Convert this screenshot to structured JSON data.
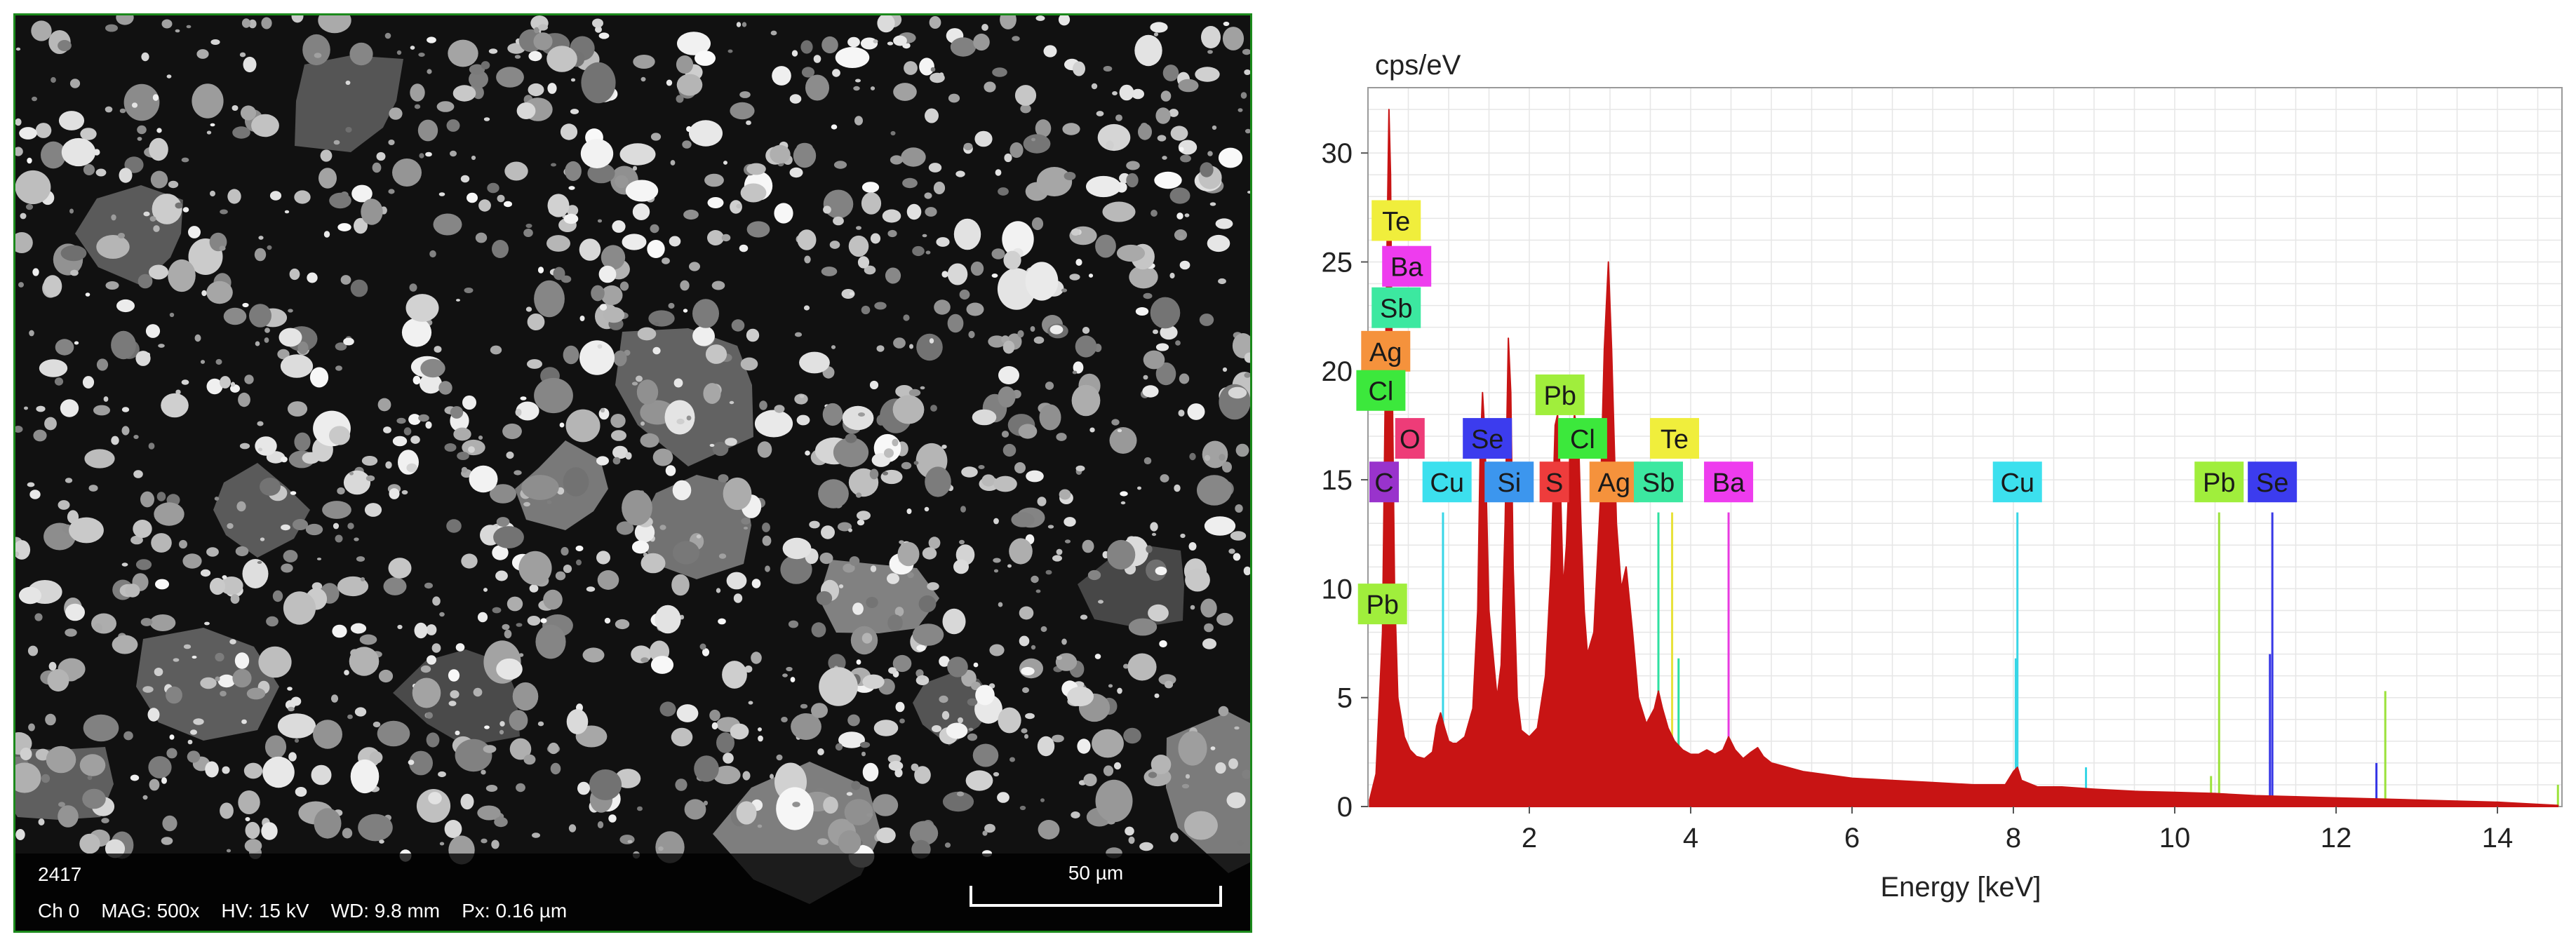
{
  "sem_image": {
    "image_id": "2417",
    "params": "Ch 0    MAG: 500x    HV: 15 kV    WD: 9.8 mm    Px: 0.16 µm",
    "scale_label": "50 µm"
  },
  "chart_data": {
    "type": "line",
    "title": "",
    "ylabel": "cps/eV",
    "xlabel": "Energy [keV]",
    "xlim": [
      0,
      14.8
    ],
    "ylim": [
      0,
      33
    ],
    "xticks": [
      2,
      4,
      6,
      8,
      10,
      12,
      14
    ],
    "yticks": [
      0,
      5,
      10,
      15,
      20,
      25,
      30
    ],
    "grid": true,
    "spectrum": {
      "color": "#c81414",
      "x": [
        0.02,
        0.1,
        0.18,
        0.23,
        0.26,
        0.28,
        0.3,
        0.33,
        0.37,
        0.45,
        0.52,
        0.6,
        0.7,
        0.8,
        0.85,
        0.9,
        0.95,
        1.0,
        1.05,
        1.1,
        1.2,
        1.3,
        1.36,
        1.39,
        1.42,
        1.45,
        1.5,
        1.6,
        1.65,
        1.7,
        1.74,
        1.77,
        1.8,
        1.85,
        1.9,
        2.0,
        2.1,
        2.2,
        2.27,
        2.32,
        2.35,
        2.38,
        2.42,
        2.46,
        2.5,
        2.56,
        2.61,
        2.64,
        2.68,
        2.72,
        2.8,
        2.88,
        2.93,
        2.98,
        3.02,
        3.08,
        3.14,
        3.2,
        3.28,
        3.35,
        3.45,
        3.55,
        3.6,
        3.65,
        3.72,
        3.8,
        3.9,
        4.0,
        4.1,
        4.2,
        4.3,
        4.4,
        4.47,
        4.55,
        4.65,
        4.75,
        4.83,
        4.9,
        5.0,
        5.1,
        5.2,
        5.4,
        5.6,
        5.8,
        6.0,
        6.5,
        7.0,
        7.5,
        7.9,
        8.0,
        8.05,
        8.1,
        8.3,
        8.6,
        9.0,
        9.5,
        10.0,
        10.5,
        11.0,
        11.5,
        12.0,
        12.5,
        13.0,
        13.5,
        14.0,
        14.5,
        14.75
      ],
      "y": [
        0.3,
        1.5,
        8.0,
        24.0,
        32.0,
        29.0,
        20.0,
        10.0,
        5.0,
        3.2,
        2.6,
        2.3,
        2.2,
        2.5,
        3.7,
        4.3,
        3.6,
        3.0,
        2.9,
        2.9,
        3.2,
        4.5,
        9.0,
        16.0,
        19.0,
        17.0,
        9.0,
        5.0,
        6.5,
        13.0,
        21.5,
        19.0,
        11.0,
        5.0,
        3.5,
        3.2,
        3.6,
        6.0,
        11.0,
        17.5,
        18.0,
        15.5,
        10.0,
        12.0,
        16.0,
        18.0,
        17.0,
        13.0,
        9.0,
        7.0,
        8.0,
        14.0,
        21.0,
        25.0,
        21.0,
        13.0,
        10.0,
        11.0,
        8.0,
        5.0,
        3.8,
        4.5,
        5.3,
        4.5,
        3.6,
        3.0,
        2.6,
        2.4,
        2.4,
        2.6,
        2.4,
        2.6,
        3.2,
        2.6,
        2.2,
        2.5,
        2.7,
        2.3,
        2.0,
        1.9,
        1.8,
        1.6,
        1.5,
        1.4,
        1.3,
        1.2,
        1.1,
        1.0,
        1.0,
        1.6,
        1.8,
        1.2,
        0.9,
        0.9,
        0.8,
        0.7,
        0.65,
        0.6,
        0.5,
        0.45,
        0.4,
        0.35,
        0.3,
        0.25,
        0.2,
        0.1,
        0.05
      ]
    },
    "element_lines": [
      {
        "x": 0.28,
        "y": 1.3,
        "color": "#9933cc"
      },
      {
        "x": 0.52,
        "y": 1.6,
        "color": "#e83a6a"
      },
      {
        "x": 0.93,
        "y": 13.5,
        "color": "#38d6e6"
      },
      {
        "x": 1.38,
        "y": 9.0,
        "color": "#3838e6"
      },
      {
        "x": 1.74,
        "y": 13.5,
        "color": "#3a8fe0"
      },
      {
        "x": 2.31,
        "y": 13.5,
        "color": "#e83a3a"
      },
      {
        "x": 2.35,
        "y": 7.0,
        "color": "#9be23a"
      },
      {
        "x": 2.62,
        "y": 13.5,
        "color": "#2ee07a"
      },
      {
        "x": 2.98,
        "y": 13.5,
        "color": "#f08a2a"
      },
      {
        "x": 3.6,
        "y": 13.5,
        "color": "#2ee0a0"
      },
      {
        "x": 3.77,
        "y": 13.5,
        "color": "#e8e23a"
      },
      {
        "x": 3.85,
        "y": 6.8,
        "color": "#2ee0a0"
      },
      {
        "x": 4.47,
        "y": 13.5,
        "color": "#e83ae0"
      },
      {
        "x": 4.83,
        "y": 2.5,
        "color": "#e83ae0"
      },
      {
        "x": 5.13,
        "y": 1.7,
        "color": "#e83ae0"
      },
      {
        "x": 8.05,
        "y": 13.5,
        "color": "#38d6e6"
      },
      {
        "x": 8.03,
        "y": 6.8,
        "color": "#38d6e6"
      },
      {
        "x": 8.9,
        "y": 1.8,
        "color": "#38d6e6"
      },
      {
        "x": 10.55,
        "y": 13.5,
        "color": "#9be23a"
      },
      {
        "x": 10.45,
        "y": 1.4,
        "color": "#9be23a"
      },
      {
        "x": 11.21,
        "y": 13.5,
        "color": "#3838e6"
      },
      {
        "x": 11.18,
        "y": 7.0,
        "color": "#3838e6"
      },
      {
        "x": 12.5,
        "y": 2.0,
        "color": "#3838e6"
      },
      {
        "x": 12.61,
        "y": 5.3,
        "color": "#9be23a"
      },
      {
        "x": 14.75,
        "y": 1.0,
        "color": "#9be23a"
      }
    ],
    "element_labels": [
      {
        "text": "Te",
        "x": 0.35,
        "y": 26.9,
        "color": "#f0ee3c"
      },
      {
        "text": "Ba",
        "x": 0.48,
        "y": 24.8,
        "color": "#ee3cee"
      },
      {
        "text": "Sb",
        "x": 0.35,
        "y": 22.9,
        "color": "#3ce8a0"
      },
      {
        "text": "Ag",
        "x": 0.22,
        "y": 20.9,
        "color": "#f5923c"
      },
      {
        "text": "Cl",
        "x": 0.16,
        "y": 19.1,
        "color": "#3ce83c"
      },
      {
        "text": "O",
        "x": 0.52,
        "y": 16.9,
        "color": "#ee3c78"
      },
      {
        "text": "Se",
        "x": 1.48,
        "y": 16.9,
        "color": "#3c3cee"
      },
      {
        "text": "Pb",
        "x": 2.38,
        "y": 18.9,
        "color": "#a0ee3c"
      },
      {
        "text": "Cl",
        "x": 2.66,
        "y": 16.9,
        "color": "#3ce83c"
      },
      {
        "text": "Te",
        "x": 3.8,
        "y": 16.9,
        "color": "#f0ee3c"
      },
      {
        "text": "C",
        "x": 0.2,
        "y": 14.9,
        "color": "#9933cc"
      },
      {
        "text": "Cu",
        "x": 0.98,
        "y": 14.9,
        "color": "#3ce0ee"
      },
      {
        "text": "Si",
        "x": 1.75,
        "y": 14.9,
        "color": "#3c96ee"
      },
      {
        "text": "S",
        "x": 2.31,
        "y": 14.9,
        "color": "#ee3c3c"
      },
      {
        "text": "Ag",
        "x": 3.05,
        "y": 14.9,
        "color": "#f5923c"
      },
      {
        "text": "Sb",
        "x": 3.6,
        "y": 14.9,
        "color": "#3ce8a0"
      },
      {
        "text": "Ba",
        "x": 4.47,
        "y": 14.9,
        "color": "#ee3cee"
      },
      {
        "text": "Cu",
        "x": 8.05,
        "y": 14.9,
        "color": "#3ce0ee"
      },
      {
        "text": "Pb",
        "x": 10.55,
        "y": 14.9,
        "color": "#a0ee3c"
      },
      {
        "text": "Se",
        "x": 11.21,
        "y": 14.9,
        "color": "#3c3cee"
      },
      {
        "text": "Pb",
        "x": 0.18,
        "y": 9.3,
        "color": "#a0ee3c"
      }
    ]
  }
}
